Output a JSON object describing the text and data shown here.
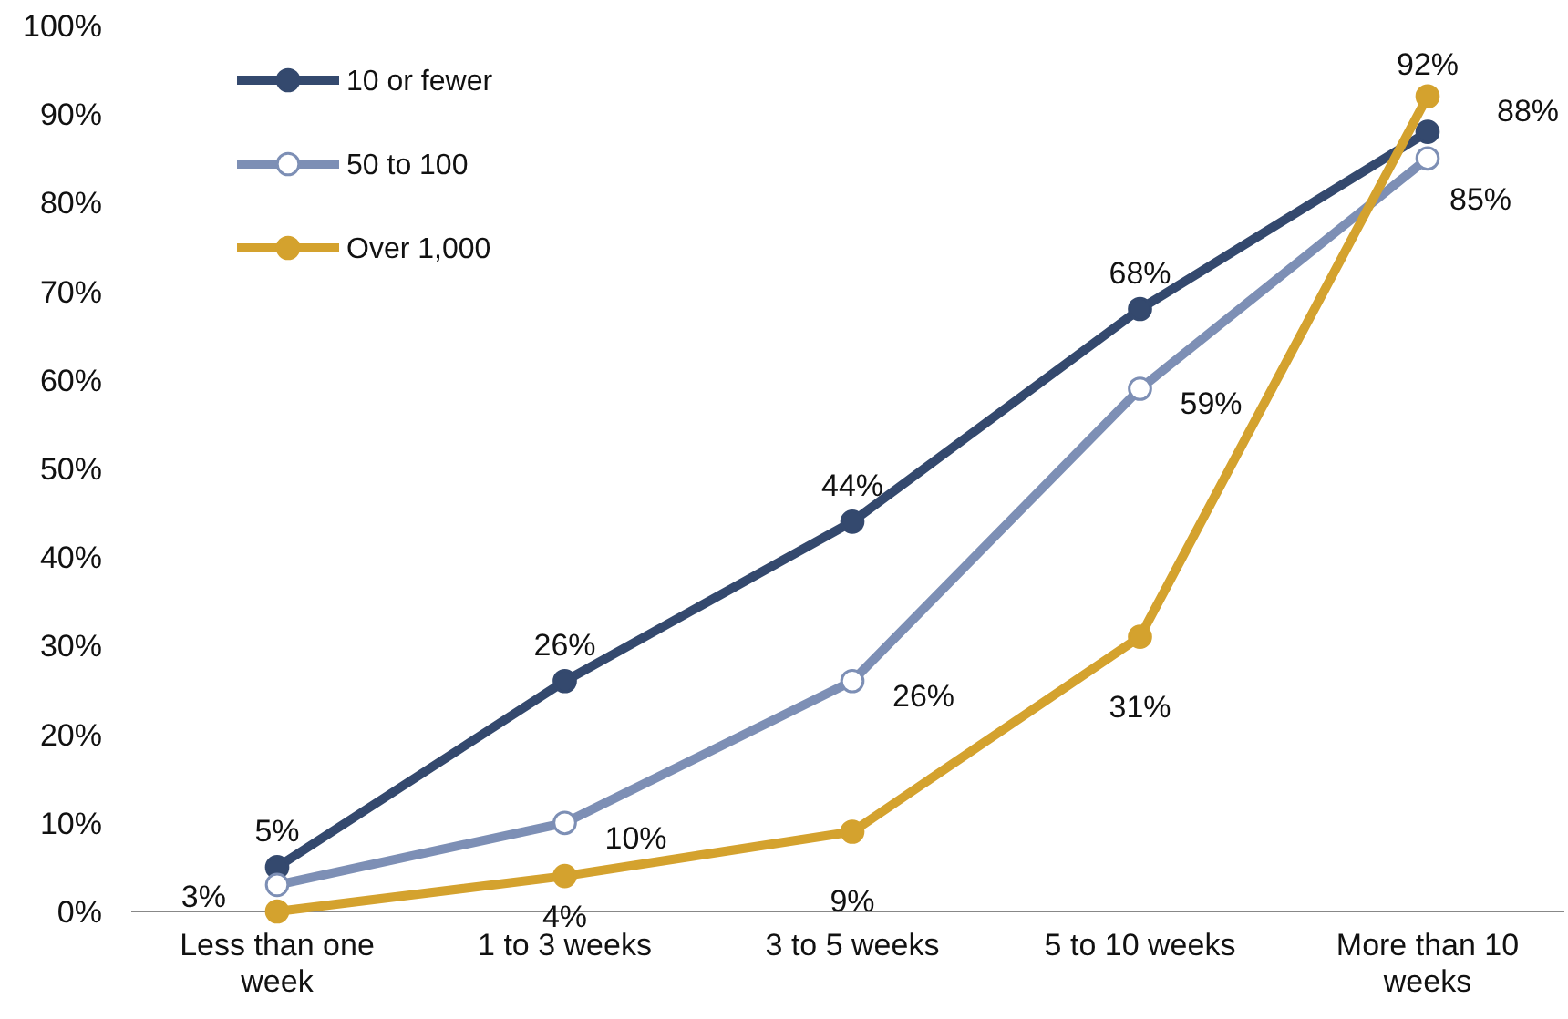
{
  "chart_data": {
    "type": "line",
    "categories": [
      "Less than one week",
      "1 to 3 weeks",
      "3 to 5 weeks",
      "5 to 10 weeks",
      "More than 10 weeks"
    ],
    "series": [
      {
        "name": "10 or fewer",
        "color": "#34496e",
        "values": [
          5,
          26,
          44,
          68,
          88
        ],
        "value_labels": [
          "5%",
          "26%",
          "44%",
          "68%",
          "88%"
        ]
      },
      {
        "name": "50 to 100",
        "color": "#7d8fb5",
        "values": [
          3,
          10,
          26,
          59,
          85
        ],
        "value_labels": [
          "3%",
          "10%",
          "26%",
          "59%",
          "85%"
        ]
      },
      {
        "name": "Over 1,000",
        "color": "#d4a22e",
        "values": [
          0,
          4,
          9,
          31,
          92
        ],
        "value_labels": [
          null,
          "4%",
          "9%",
          "31%",
          "92%"
        ]
      }
    ],
    "ylim": [
      0,
      100
    ],
    "yticks": [
      {
        "value": 0,
        "label": "0%"
      },
      {
        "value": 10,
        "label": "10%"
      },
      {
        "value": 20,
        "label": "20%"
      },
      {
        "value": 30,
        "label": "30%"
      },
      {
        "value": 40,
        "label": "40%"
      },
      {
        "value": 50,
        "label": "50%"
      },
      {
        "value": 60,
        "label": "60%"
      },
      {
        "value": 70,
        "label": "70%"
      },
      {
        "value": 80,
        "label": "80%"
      },
      {
        "value": 90,
        "label": "90%"
      },
      {
        "value": 100,
        "label": "100%"
      }
    ],
    "grid": false,
    "legend": "top left",
    "marker": "circle",
    "line_style": "solid"
  }
}
